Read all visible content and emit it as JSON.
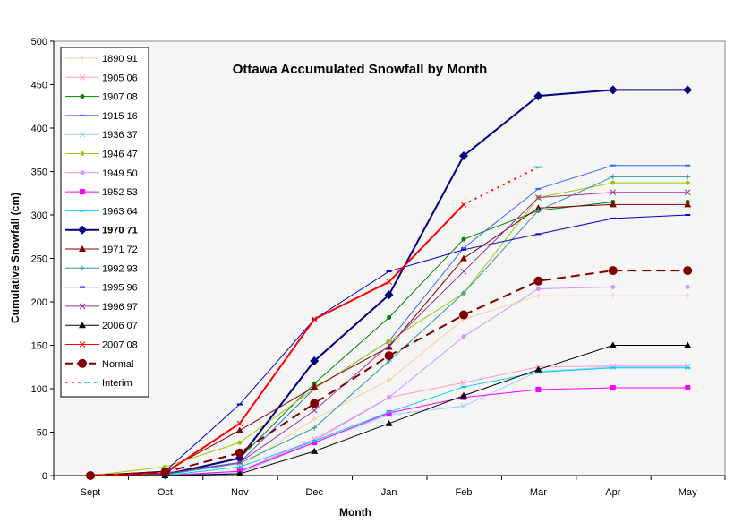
{
  "chart_data": {
    "type": "line",
    "title": "Ottawa Accumulated Snowfall by Month",
    "xlabel": "Month",
    "ylabel": "Cumulative Snowfall (cm)",
    "ylim": [
      0,
      500
    ],
    "yticks": [
      0,
      50,
      100,
      150,
      200,
      250,
      300,
      350,
      400,
      450,
      500
    ],
    "categories": [
      "Sept",
      "Oct",
      "Nov",
      "Dec",
      "Jan",
      "Feb",
      "Mar",
      "Apr",
      "May"
    ],
    "legend_placement": "top-left",
    "grid": false,
    "series": [
      {
        "name": "1890 91",
        "color": "#ffcc99",
        "marker": "plus",
        "values": [
          0,
          0,
          10,
          65,
          110,
          180,
          207,
          207,
          207
        ]
      },
      {
        "name": "1905 06",
        "color": "#ff99cc",
        "marker": "x",
        "values": [
          0,
          0,
          5,
          42,
          90,
          107,
          125,
          126,
          126
        ]
      },
      {
        "name": "1907 08",
        "color": "#008000",
        "marker": "dot",
        "values": [
          0,
          2,
          20,
          106,
          182,
          272,
          305,
          315,
          315
        ]
      },
      {
        "name": "1915 16",
        "color": "#3366ff",
        "marker": "dash",
        "values": [
          0,
          3,
          15,
          100,
          155,
          262,
          330,
          357,
          357
        ]
      },
      {
        "name": "1936 37",
        "color": "#99ccff",
        "marker": "x",
        "values": [
          0,
          0,
          3,
          38,
          70,
          80,
          120,
          125,
          125
        ]
      },
      {
        "name": "1946 47",
        "color": "#99cc00",
        "marker": "dot",
        "values": [
          0,
          10,
          38,
          100,
          155,
          210,
          320,
          337,
          337
        ]
      },
      {
        "name": "1949 50",
        "color": "#cc99ff",
        "marker": "dot",
        "values": [
          0,
          0,
          5,
          40,
          90,
          160,
          215,
          217,
          217
        ]
      },
      {
        "name": "1952 53",
        "color": "#ff00ff",
        "marker": "square",
        "values": [
          0,
          0,
          5,
          38,
          72,
          90,
          99,
          101,
          101
        ]
      },
      {
        "name": "1963 64",
        "color": "#00ccff",
        "marker": "dash",
        "values": [
          0,
          0,
          10,
          40,
          73,
          102,
          119,
          124,
          124
        ]
      },
      {
        "name": "1970 71",
        "color": "#000080",
        "marker": "diamond",
        "bold": true,
        "values": [
          0,
          1,
          20,
          132,
          208,
          368,
          437,
          444,
          444
        ]
      },
      {
        "name": "1971 72",
        "color": "#800000",
        "marker": "triangle",
        "values": [
          0,
          5,
          52,
          102,
          148,
          250,
          308,
          312,
          312
        ]
      },
      {
        "name": "1992 93",
        "color": "#339999",
        "marker": "plus",
        "values": [
          0,
          1,
          14,
          55,
          132,
          210,
          305,
          344,
          344
        ]
      },
      {
        "name": "1995 96",
        "color": "#0000cc",
        "marker": "dash",
        "values": [
          0,
          5,
          82,
          180,
          235,
          260,
          278,
          296,
          300
        ]
      },
      {
        "name": "1996 97",
        "color": "#993399",
        "marker": "x",
        "values": [
          0,
          2,
          15,
          75,
          150,
          235,
          320,
          326,
          326
        ]
      },
      {
        "name": "2006 07",
        "color": "#000000",
        "marker": "triangle",
        "values": [
          0,
          0,
          2,
          28,
          60,
          92,
          122,
          150,
          150
        ]
      },
      {
        "name": "2007 08",
        "color": "#ff0000",
        "marker": "x",
        "values": [
          0,
          3,
          60,
          180,
          223,
          312,
          null,
          null,
          null
        ]
      },
      {
        "name": "Normal",
        "color": "#800000",
        "marker": "bigdot",
        "dashed": true,
        "values": [
          0,
          4,
          26,
          83,
          138,
          185,
          224,
          236,
          236
        ]
      },
      {
        "name": "Interim",
        "color": "#ff0000",
        "marker": "dash",
        "dotted": true,
        "values": [
          null,
          null,
          null,
          null,
          null,
          312,
          355,
          null,
          null
        ]
      }
    ]
  }
}
